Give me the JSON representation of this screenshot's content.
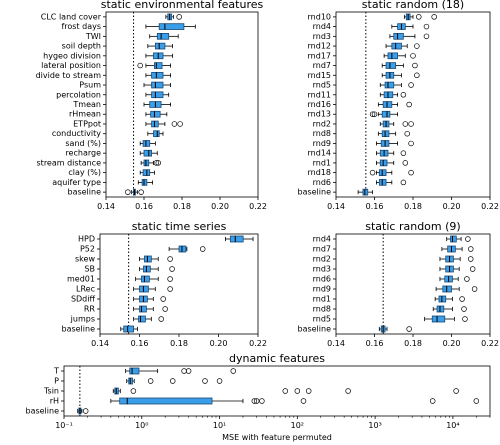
{
  "chart_data": [
    {
      "type": "boxplot",
      "title": "static environmental features",
      "xscale": "linear",
      "xlim": [
        0.14,
        0.22
      ],
      "xticks": [
        "0.14",
        "0.16",
        "0.18",
        "0.20",
        "0.22"
      ],
      "tickvals": [
        0.14,
        0.16,
        0.18,
        0.2,
        0.22
      ],
      "reference_line": 0.1545,
      "categories": [
        "CLC land cover",
        "frost days",
        "TWI",
        "soil depth",
        "hygeo division",
        "lateral position",
        "divide to stream",
        "Psum",
        "percolation",
        "Tmean",
        "rHmean",
        "ETPpot",
        "conductivity",
        "sand (%)",
        "recharge",
        "stream distance",
        "clay (%)",
        "aquifer type",
        "baseline"
      ],
      "boxes": [
        {
          "wl": 0.1715,
          "q1": 0.1725,
          "med": 0.1735,
          "q3": 0.1745,
          "wh": 0.1755,
          "fl": [
            0.1785
          ]
        },
        {
          "wl": 0.161,
          "q1": 0.168,
          "med": 0.171,
          "q3": 0.181,
          "wh": 0.187,
          "fl": []
        },
        {
          "wl": 0.163,
          "q1": 0.167,
          "med": 0.169,
          "q3": 0.173,
          "wh": 0.178,
          "fl": []
        },
        {
          "wl": 0.162,
          "q1": 0.166,
          "med": 0.168,
          "q3": 0.171,
          "wh": 0.175,
          "fl": []
        },
        {
          "wl": 0.161,
          "q1": 0.165,
          "med": 0.1675,
          "q3": 0.17,
          "wh": 0.175,
          "fl": []
        },
        {
          "wl": 0.161,
          "q1": 0.1655,
          "med": 0.1665,
          "q3": 0.1695,
          "wh": 0.174,
          "fl": [
            0.158
          ]
        },
        {
          "wl": 0.161,
          "q1": 0.164,
          "med": 0.1665,
          "q3": 0.17,
          "wh": 0.174,
          "fl": []
        },
        {
          "wl": 0.16,
          "q1": 0.164,
          "med": 0.166,
          "q3": 0.17,
          "wh": 0.174,
          "fl": []
        },
        {
          "wl": 0.161,
          "q1": 0.164,
          "med": 0.166,
          "q3": 0.17,
          "wh": 0.173,
          "fl": []
        },
        {
          "wl": 0.16,
          "q1": 0.163,
          "med": 0.166,
          "q3": 0.169,
          "wh": 0.174,
          "fl": []
        },
        {
          "wl": 0.161,
          "q1": 0.1635,
          "med": 0.1655,
          "q3": 0.1685,
          "wh": 0.172,
          "fl": []
        },
        {
          "wl": 0.161,
          "q1": 0.164,
          "med": 0.1655,
          "q3": 0.1675,
          "wh": 0.171,
          "fl": [
            0.176,
            0.179
          ]
        },
        {
          "wl": 0.162,
          "q1": 0.165,
          "med": 0.167,
          "q3": 0.168,
          "wh": 0.17,
          "fl": []
        },
        {
          "wl": 0.158,
          "q1": 0.1595,
          "med": 0.161,
          "q3": 0.163,
          "wh": 0.166,
          "fl": []
        },
        {
          "wl": 0.158,
          "q1": 0.16,
          "med": 0.1625,
          "q3": 0.164,
          "wh": 0.167,
          "fl": []
        },
        {
          "wl": 0.1585,
          "q1": 0.16,
          "med": 0.161,
          "q3": 0.1625,
          "wh": 0.165,
          "fl": [
            0.1665,
            0.1675
          ]
        },
        {
          "wl": 0.158,
          "q1": 0.1595,
          "med": 0.1615,
          "q3": 0.163,
          "wh": 0.1655,
          "fl": []
        },
        {
          "wl": 0.157,
          "q1": 0.159,
          "med": 0.16,
          "q3": 0.1615,
          "wh": 0.1645,
          "fl": []
        },
        {
          "wl": 0.1535,
          "q1": 0.1545,
          "med": 0.155,
          "q3": 0.1555,
          "wh": 0.1565,
          "fl": [
            0.1515,
            0.1585
          ]
        }
      ]
    },
    {
      "type": "boxplot",
      "title": "static random (18)",
      "xscale": "linear",
      "xlim": [
        0.14,
        0.22
      ],
      "xticks": [
        "0.14",
        "0.16",
        "0.18",
        "0.20",
        "0.22"
      ],
      "tickvals": [
        0.14,
        0.16,
        0.18,
        0.2,
        0.22
      ],
      "reference_line": 0.1555,
      "categories": [
        "rnd10",
        "rnd4",
        "rnd3",
        "rnd12",
        "rnd17",
        "rnd7",
        "rnd15",
        "rnd5",
        "rnd11",
        "rnd16",
        "rnd13",
        "rnd2",
        "rnd8",
        "rnd9",
        "rnd14",
        "rnd1",
        "rnd18",
        "rnd6",
        "baseline"
      ],
      "boxes": [
        {
          "wl": 0.1755,
          "q1": 0.1765,
          "med": 0.1775,
          "q3": 0.1785,
          "wh": 0.18,
          "fl": [
            0.183,
            0.191
          ]
        },
        {
          "wl": 0.169,
          "q1": 0.172,
          "med": 0.174,
          "q3": 0.176,
          "wh": 0.18,
          "fl": [
            0.187
          ]
        },
        {
          "wl": 0.168,
          "q1": 0.17,
          "med": 0.172,
          "q3": 0.175,
          "wh": 0.181,
          "fl": [
            0.187
          ]
        },
        {
          "wl": 0.166,
          "q1": 0.169,
          "med": 0.171,
          "q3": 0.174,
          "wh": 0.177,
          "fl": [
            0.182
          ]
        },
        {
          "wl": 0.165,
          "q1": 0.167,
          "med": 0.169,
          "q3": 0.172,
          "wh": 0.176,
          "fl": [
            0.18
          ]
        },
        {
          "wl": 0.164,
          "q1": 0.166,
          "med": 0.168,
          "q3": 0.171,
          "wh": 0.175,
          "fl": [
            0.181
          ]
        },
        {
          "wl": 0.164,
          "q1": 0.166,
          "med": 0.168,
          "q3": 0.17,
          "wh": 0.174,
          "fl": [
            0.182
          ]
        },
        {
          "wl": 0.163,
          "q1": 0.1655,
          "med": 0.167,
          "q3": 0.17,
          "wh": 0.174,
          "fl": [
            0.179
          ]
        },
        {
          "wl": 0.163,
          "q1": 0.165,
          "med": 0.167,
          "q3": 0.1695,
          "wh": 0.172,
          "fl": [
            0.175
          ]
        },
        {
          "wl": 0.162,
          "q1": 0.1645,
          "med": 0.1665,
          "q3": 0.169,
          "wh": 0.172,
          "fl": [
            0.178
          ]
        },
        {
          "wl": 0.162,
          "q1": 0.164,
          "med": 0.1665,
          "q3": 0.168,
          "wh": 0.172,
          "fl": [
            0.159,
            0.16
          ]
        },
        {
          "wl": 0.163,
          "q1": 0.1645,
          "med": 0.166,
          "q3": 0.1675,
          "wh": 0.17,
          "fl": [
            0.176,
            0.179
          ]
        },
        {
          "wl": 0.162,
          "q1": 0.164,
          "med": 0.1655,
          "q3": 0.1675,
          "wh": 0.171,
          "fl": [
            0.177
          ]
        },
        {
          "wl": 0.161,
          "q1": 0.1635,
          "med": 0.1655,
          "q3": 0.1675,
          "wh": 0.172,
          "fl": [
            0.179
          ]
        },
        {
          "wl": 0.161,
          "q1": 0.163,
          "med": 0.165,
          "q3": 0.167,
          "wh": 0.17,
          "fl": [
            0.175
          ]
        },
        {
          "wl": 0.161,
          "q1": 0.163,
          "med": 0.1645,
          "q3": 0.1665,
          "wh": 0.17,
          "fl": [
            0.176
          ]
        },
        {
          "wl": 0.161,
          "q1": 0.1625,
          "med": 0.164,
          "q3": 0.166,
          "wh": 0.169,
          "fl": [
            0.159,
            0.179
          ]
        },
        {
          "wl": 0.161,
          "q1": 0.1625,
          "med": 0.164,
          "q3": 0.166,
          "wh": 0.169,
          "fl": [
            0.175
          ]
        },
        {
          "wl": 0.1515,
          "q1": 0.154,
          "med": 0.155,
          "q3": 0.1565,
          "wh": 0.159,
          "fl": []
        }
      ]
    },
    {
      "type": "boxplot",
      "title": "static time series",
      "xscale": "linear",
      "xlim": [
        0.14,
        0.22
      ],
      "xticks": [
        "0.14",
        "0.16",
        "0.18",
        "0.20",
        "0.22"
      ],
      "tickvals": [
        0.14,
        0.16,
        0.18,
        0.2,
        0.22
      ],
      "reference_line": 0.1545,
      "categories": [
        "HPD",
        "P52",
        "skew",
        "SB",
        "med01",
        "LRec",
        "SDdiff",
        "RR",
        "jumps",
        "baseline"
      ],
      "boxes": [
        {
          "wl": 0.2035,
          "q1": 0.206,
          "med": 0.2085,
          "q3": 0.2125,
          "wh": 0.2175,
          "fl": []
        },
        {
          "wl": 0.175,
          "q1": 0.18,
          "med": 0.1815,
          "q3": 0.1835,
          "wh": 0.184,
          "fl": [
            0.192
          ]
        },
        {
          "wl": 0.16,
          "q1": 0.1625,
          "med": 0.164,
          "q3": 0.166,
          "wh": 0.1695,
          "fl": [
            0.1755
          ]
        },
        {
          "wl": 0.16,
          "q1": 0.162,
          "med": 0.1635,
          "q3": 0.1655,
          "wh": 0.1695,
          "fl": [
            0.1765
          ]
        },
        {
          "wl": 0.158,
          "q1": 0.161,
          "med": 0.1625,
          "q3": 0.165,
          "wh": 0.1695,
          "fl": [
            0.1755
          ]
        },
        {
          "wl": 0.157,
          "q1": 0.16,
          "med": 0.162,
          "q3": 0.1645,
          "wh": 0.168,
          "fl": [
            0.1755
          ]
        },
        {
          "wl": 0.157,
          "q1": 0.16,
          "med": 0.162,
          "q3": 0.164,
          "wh": 0.167,
          "fl": [
            0.172
          ]
        },
        {
          "wl": 0.157,
          "q1": 0.16,
          "med": 0.161,
          "q3": 0.1635,
          "wh": 0.167,
          "fl": [
            0.173
          ]
        },
        {
          "wl": 0.157,
          "q1": 0.1595,
          "med": 0.1605,
          "q3": 0.163,
          "wh": 0.166,
          "fl": [
            0.171
          ]
        },
        {
          "wl": 0.1505,
          "q1": 0.152,
          "med": 0.154,
          "q3": 0.157,
          "wh": 0.159,
          "fl": []
        }
      ]
    },
    {
      "type": "boxplot",
      "title": "static random (9)",
      "xscale": "linear",
      "xlim": [
        0.14,
        0.22
      ],
      "xticks": [
        "0.14",
        "0.16",
        "0.18",
        "0.20",
        "0.22"
      ],
      "tickvals": [
        0.14,
        0.16,
        0.18,
        0.2,
        0.22
      ],
      "reference_line": 0.1645,
      "categories": [
        "rnd4",
        "rnd7",
        "rnd2",
        "rnd3",
        "rnd6",
        "rnd9",
        "rnd1",
        "rnd8",
        "rnd5",
        "baseline"
      ],
      "boxes": [
        {
          "wl": 0.1975,
          "q1": 0.1995,
          "med": 0.2005,
          "q3": 0.2025,
          "wh": 0.205,
          "fl": [
            0.2085
          ]
        },
        {
          "wl": 0.195,
          "q1": 0.198,
          "med": 0.2,
          "q3": 0.202,
          "wh": 0.2055,
          "fl": [
            0.21
          ]
        },
        {
          "wl": 0.194,
          "q1": 0.197,
          "med": 0.199,
          "q3": 0.201,
          "wh": 0.2045,
          "fl": [
            0.21
          ]
        },
        {
          "wl": 0.194,
          "q1": 0.197,
          "med": 0.199,
          "q3": 0.201,
          "wh": 0.204,
          "fl": [
            0.211
          ]
        },
        {
          "wl": 0.194,
          "q1": 0.1965,
          "med": 0.1985,
          "q3": 0.2005,
          "wh": 0.2035,
          "fl": [
            0.208
          ]
        },
        {
          "wl": 0.192,
          "q1": 0.1955,
          "med": 0.1975,
          "q3": 0.2,
          "wh": 0.204,
          "fl": [
            0.212
          ]
        },
        {
          "wl": 0.1915,
          "q1": 0.1935,
          "med": 0.195,
          "q3": 0.197,
          "wh": 0.2005,
          "fl": [
            0.2055
          ]
        },
        {
          "wl": 0.1905,
          "q1": 0.1925,
          "med": 0.194,
          "q3": 0.196,
          "wh": 0.2005,
          "fl": [
            0.2065
          ]
        },
        {
          "wl": 0.186,
          "q1": 0.19,
          "med": 0.1925,
          "q3": 0.1965,
          "wh": 0.2015,
          "fl": [
            0.207
          ]
        },
        {
          "wl": 0.1625,
          "q1": 0.1635,
          "med": 0.1645,
          "q3": 0.1655,
          "wh": 0.1665,
          "fl": [
            0.178
          ]
        }
      ]
    },
    {
      "type": "boxplot",
      "title": "dynamic features",
      "xscale": "log",
      "xlim": [
        0.1,
        30000
      ],
      "xticks": [
        "10⁻¹",
        "10⁰",
        "10¹",
        "10²",
        "10³",
        "10⁴"
      ],
      "tickvals": [
        0.1,
        1,
        10,
        100,
        1000,
        10000
      ],
      "xlabel": "MSE with feature permuted",
      "reference_line": 0.16,
      "categories": [
        "T",
        "P",
        "Tsin",
        "rH",
        "baseline"
      ],
      "boxes": [
        {
          "wl": 0.62,
          "q1": 0.7,
          "med": 0.75,
          "q3": 0.92,
          "wh": 1.6,
          "fl": [
            3.5,
            4.0,
            15
          ]
        },
        {
          "wl": 0.64,
          "q1": 0.68,
          "med": 0.71,
          "q3": 0.76,
          "wh": 0.8,
          "fl": [
            1.3,
            2.5,
            6.5,
            10
          ]
        },
        {
          "wl": 0.43,
          "q1": 0.45,
          "med": 0.47,
          "q3": 0.5,
          "wh": 0.53,
          "fl": [
            0.78,
            70,
            100,
            140,
            450,
            11000
          ]
        },
        {
          "wl": 0.4,
          "q1": 0.52,
          "med": 0.65,
          "q3": 8.0,
          "wh": 20,
          "fl": [
            28,
            30,
            35,
            120,
            5500,
            20000
          ]
        },
        {
          "wl": 0.15,
          "q1": 0.155,
          "med": 0.16,
          "q3": 0.165,
          "wh": 0.17,
          "fl": [
            0.19
          ]
        }
      ]
    }
  ]
}
